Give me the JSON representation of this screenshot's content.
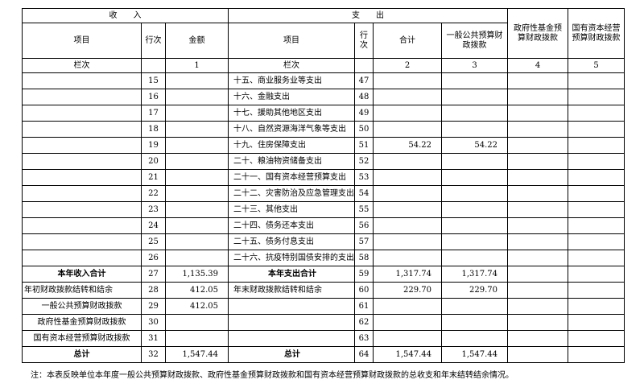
{
  "header": {
    "income": "收　　入",
    "expenditure": "支　　出",
    "fund": "政府性基金预算财政拨款",
    "state_capital": "国有资本经营预算财政拨款"
  },
  "columns": [
    "项目",
    "行次",
    "金额",
    "项目",
    "行次",
    "合计",
    "一般公共预算财政拨款"
  ],
  "column_index": [
    "栏次",
    null,
    "1",
    "栏次",
    null,
    "2",
    "3",
    "4",
    "5"
  ],
  "rows": [
    [
      null,
      "15",
      null,
      "十五、商业服务业等支出",
      "47",
      null,
      null,
      null,
      null
    ],
    [
      null,
      "16",
      null,
      "十六、金融支出",
      "48",
      null,
      null,
      null,
      null
    ],
    [
      null,
      "17",
      null,
      "十七、援助其他地区支出",
      "49",
      null,
      null,
      null,
      null
    ],
    [
      null,
      "18",
      null,
      "十八、自然资源海洋气象等支出",
      "50",
      null,
      null,
      null,
      null
    ],
    [
      null,
      "19",
      null,
      "十九、住房保障支出",
      "51",
      "54.22",
      "54.22",
      null,
      null
    ],
    [
      null,
      "20",
      null,
      "二十、粮油物资储备支出",
      "52",
      null,
      null,
      null,
      null
    ],
    [
      null,
      "21",
      null,
      "二十一、国有资本经营预算支出",
      "53",
      null,
      null,
      null,
      null
    ],
    [
      null,
      "22",
      null,
      "二十二、灾害防治及应急管理支出",
      "54",
      null,
      null,
      null,
      null
    ],
    [
      null,
      "23",
      null,
      "二十三、其他支出",
      "55",
      null,
      null,
      null,
      null
    ],
    [
      null,
      "24",
      null,
      "二十四、债务还本支出",
      "56",
      null,
      null,
      null,
      null
    ],
    [
      null,
      "25",
      null,
      "二十五、债务付息支出",
      "57",
      null,
      null,
      null,
      null
    ],
    [
      null,
      "26",
      null,
      "二十六、抗疫特别国债安排的支出",
      "58",
      null,
      null,
      null,
      null
    ],
    [
      "本年收入合计",
      "27",
      "1,135.39",
      "本年支出合计",
      "59",
      "1,317.74",
      "1,317.74",
      null,
      null
    ],
    [
      "年初财政拨款结转和结余",
      "28",
      "412.05",
      "年末财政拨款结转和结余",
      "60",
      "229.70",
      "229.70",
      null,
      null
    ],
    [
      "一般公共预算财政拨款",
      "29",
      "412.05",
      null,
      "61",
      null,
      null,
      null,
      null
    ],
    [
      "政府性基金预算财政拨款",
      "30",
      null,
      null,
      "62",
      null,
      null,
      null,
      null
    ],
    [
      "国有资本经营预算财政拨款",
      "31",
      null,
      null,
      "63",
      null,
      null,
      null,
      null
    ],
    [
      "总计",
      "32",
      "1,547.44",
      "总计",
      "64",
      "1,547.44",
      "1,547.44",
      null,
      null
    ]
  ],
  "note": "注：本表反映单位本年度一般公共预算财政拨款、政府性基金预算财政拨款和国有资本经营预算财政拨款的总收支和年末结转结余情况。"
}
